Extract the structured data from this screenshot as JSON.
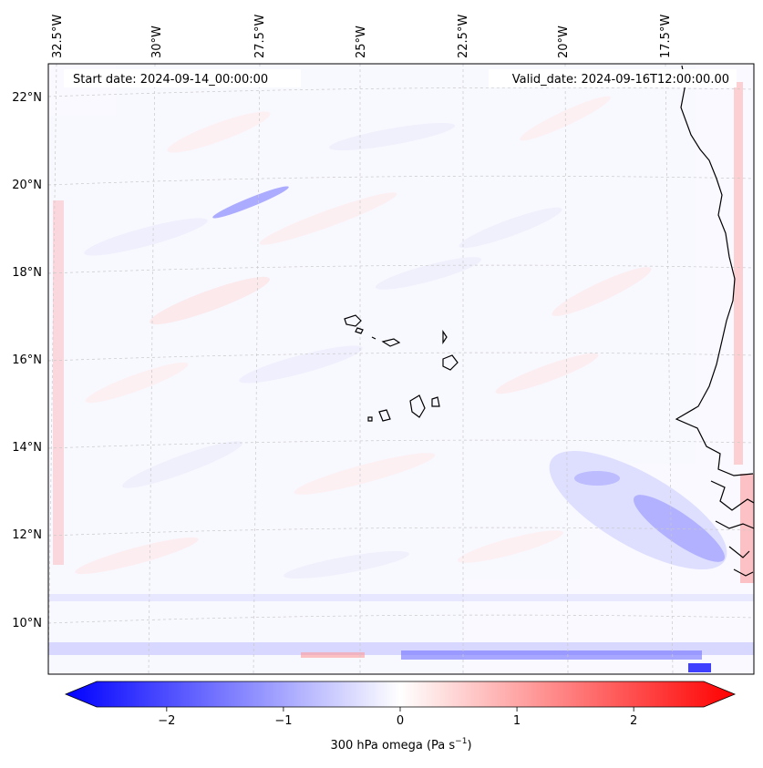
{
  "map": {
    "start_label": "Start date: 2024-09-14_00:00:00",
    "valid_label": "Valid_date: 2024-09-16T12:00:00.00",
    "lon_labels": [
      "32.5°W",
      "30°W",
      "27.5°W",
      "25°W",
      "22.5°W",
      "20°W",
      "17.5°W"
    ],
    "lat_labels": [
      "22°N",
      "20°N",
      "18°N",
      "16°N",
      "14°N",
      "12°N",
      "10°N"
    ],
    "colorbar": {
      "ticks": [
        "−2",
        "−1",
        "0",
        "1",
        "2"
      ],
      "tick_values": [
        -2,
        -1,
        0,
        1,
        2
      ],
      "range": [
        -2.6,
        2.6
      ],
      "label_main": "300 hPa omega (Pa s",
      "label_sup": "−1",
      "label_end": ")",
      "colormap": "bwr",
      "colors": {
        "negative": "#0000ff",
        "zero": "#ffffff",
        "positive": "#ff0000"
      }
    }
  }
}
